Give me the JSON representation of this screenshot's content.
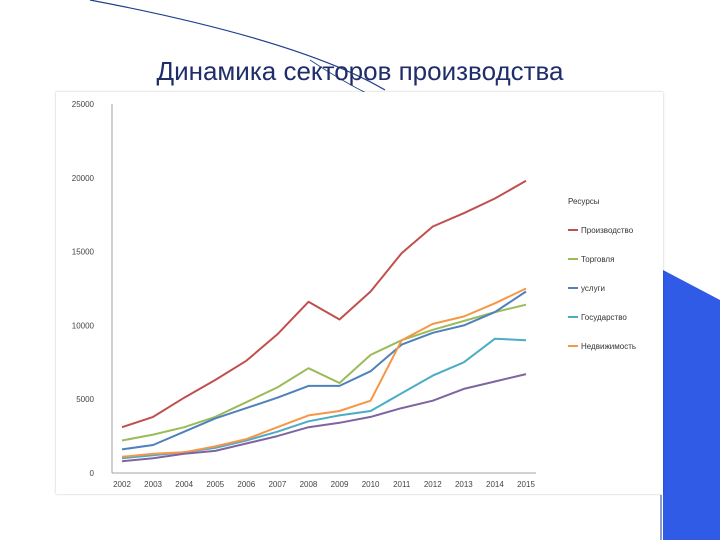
{
  "slide": {
    "title": "Динамика секторов производства",
    "accent_color": "#2f5be6",
    "arc_color": "#1f3f8a"
  },
  "chart_data": {
    "type": "line",
    "x": [
      "2002",
      "2003",
      "2004",
      "2005",
      "2006",
      "2007",
      "2008",
      "2009",
      "2010",
      "2011",
      "2012",
      "2013",
      "2014",
      "2015"
    ],
    "ylim": [
      0,
      25000
    ],
    "yticks": [
      0,
      5000,
      10000,
      15000,
      20000,
      25000
    ],
    "grid": false,
    "legend_title": "Ресурсы",
    "legend_position": "right",
    "series": [
      {
        "name": "Производство",
        "color": "#c0504d",
        "values": [
          3100,
          3800,
          5100,
          6300,
          7600,
          9400,
          11600,
          10400,
          12300,
          14900,
          16700,
          17600,
          18600,
          19800
        ]
      },
      {
        "name": "Торговля",
        "color": "#9bbb59",
        "values": [
          2200,
          2600,
          3100,
          3800,
          4800,
          5800,
          7100,
          6100,
          8000,
          9000,
          9700,
          10300,
          10900,
          11400
        ]
      },
      {
        "name": "услуги",
        "color": "#4f81bd",
        "values": [
          1600,
          1900,
          2800,
          3700,
          4400,
          5100,
          5900,
          5900,
          6900,
          8700,
          9500,
          10000,
          10900,
          12300
        ]
      },
      {
        "name": "Государство",
        "color": "#4bacc6",
        "values": [
          1000,
          1200,
          1400,
          1700,
          2200,
          2800,
          3500,
          3900,
          4200,
          5400,
          6600,
          7500,
          9100,
          9000
        ]
      },
      {
        "name": "Недвижимость",
        "color": "#f79646",
        "values": [
          1100,
          1300,
          1400,
          1800,
          2300,
          3100,
          3900,
          4200,
          4900,
          9000,
          10100,
          10600,
          11500,
          12500
        ]
      },
      {
        "name": "",
        "color": "#8064a2",
        "values": [
          800,
          1000,
          1300,
          1500,
          2000,
          2500,
          3100,
          3400,
          3800,
          4400,
          4900,
          5700,
          6200,
          6700
        ]
      }
    ]
  }
}
